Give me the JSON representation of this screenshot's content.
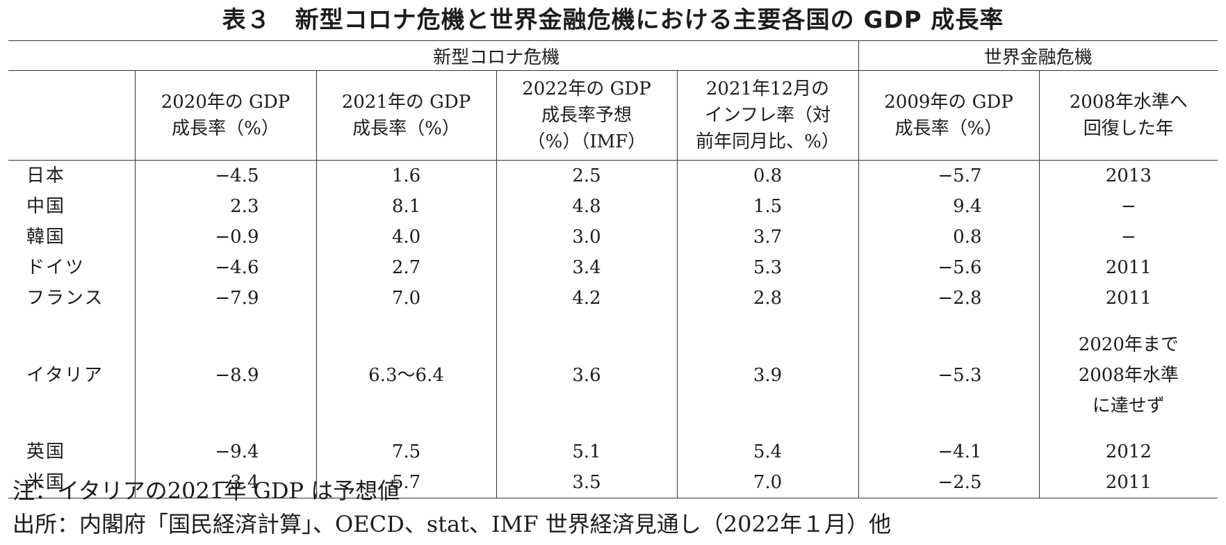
{
  "title": "表３　新型コロナ危機と世界金融危機における主要各国の GDP 成長率",
  "groups": {
    "covid": "新型コロナ危機",
    "gfc": "世界金融危機"
  },
  "columns": [
    "2020年の GDP\n成長率（%）",
    "2021年の GDP\n成長率（%）",
    "2022年の GDP\n成長率予想\n（%）（IMF）",
    "2021年12月の\nインフレ率（対\n前年同月比、%）",
    "2009年の GDP\n成長率（%）",
    "2008年水準へ\n回復した年"
  ],
  "rows": [
    {
      "country": "日本",
      "gdp2020": "−4.5",
      "gdp2021": "1.6",
      "gdp2022f": "2.5",
      "infl2021dec": "0.8",
      "gdp2009": "−5.7",
      "recovery": "2013"
    },
    {
      "country": "中国",
      "gdp2020": "2.3",
      "gdp2021": "8.1",
      "gdp2022f": "4.8",
      "infl2021dec": "1.5",
      "gdp2009": "9.4",
      "recovery": "−"
    },
    {
      "country": "韓国",
      "gdp2020": "−0.9",
      "gdp2021": "4.0",
      "gdp2022f": "3.0",
      "infl2021dec": "3.7",
      "gdp2009": "0.8",
      "recovery": "−"
    },
    {
      "country": "ドイツ",
      "gdp2020": "−4.6",
      "gdp2021": "2.7",
      "gdp2022f": "3.4",
      "infl2021dec": "5.3",
      "gdp2009": "−5.6",
      "recovery": "2011"
    },
    {
      "country": "フランス",
      "gdp2020": "−7.9",
      "gdp2021": "7.0",
      "gdp2022f": "4.2",
      "infl2021dec": "2.8",
      "gdp2009": "−2.8",
      "recovery": "2011"
    },
    {
      "country": "イタリア",
      "gdp2020": "−8.9",
      "gdp2021": "6.3〜6.4",
      "gdp2022f": "3.6",
      "infl2021dec": "3.9",
      "gdp2009": "−5.3",
      "recovery": "2020年まで\n2008年水準\nに達せず"
    },
    {
      "country": "英国",
      "gdp2020": "−9.4",
      "gdp2021": "7.5",
      "gdp2022f": "5.1",
      "infl2021dec": "5.4",
      "gdp2009": "−4.1",
      "recovery": "2012"
    },
    {
      "country": "米国",
      "gdp2020": "−3.4",
      "gdp2021": "5.7",
      "gdp2022f": "3.5",
      "infl2021dec": "7.0",
      "gdp2009": "−2.5",
      "recovery": "2011"
    }
  ],
  "notes": {
    "note": "注：イタリアの2021年 GDP は予想値",
    "source": "出所：内閣府「国民経済計算」、OECD、stat、IMF 世界経済見通し（2022年１月）他"
  }
}
